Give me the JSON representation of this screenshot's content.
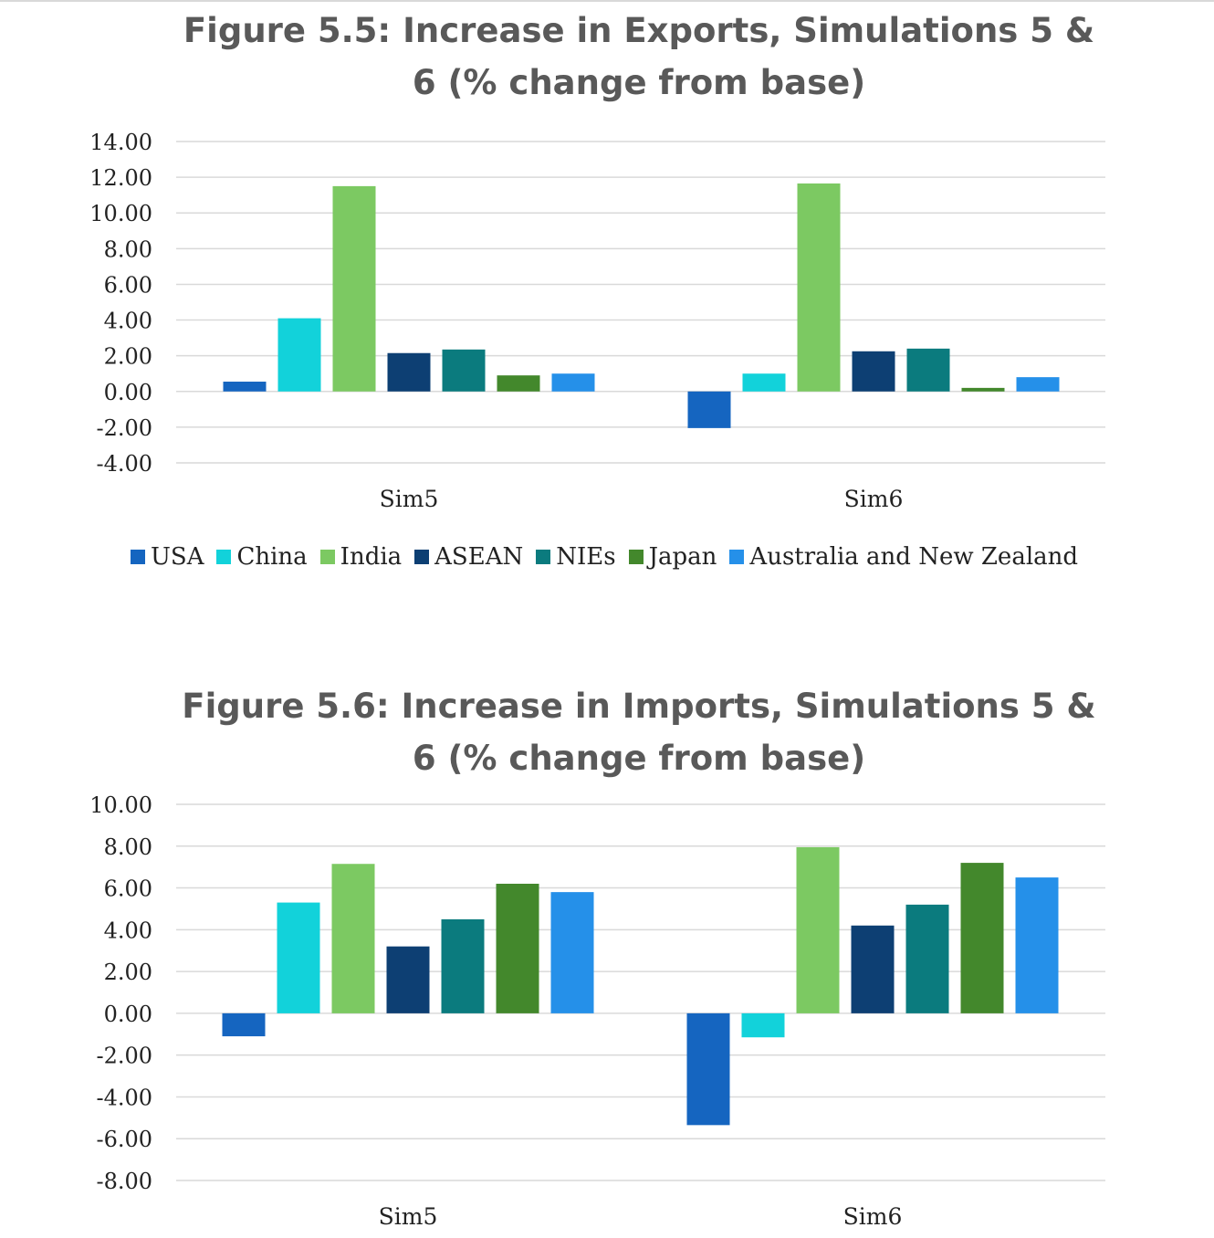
{
  "charts": [
    {
      "title_line1": "Figure 5.5: Increase in Exports, Simulations 5 &",
      "title_line2": "6 (% change from base)"
    },
    {
      "title_line1": "Figure 5.6: Increase in Imports, Simulations 5 &",
      "title_line2": "6 (% change from base)"
    }
  ],
  "legend": [
    {
      "name": "USA",
      "color": "#1565C0"
    },
    {
      "name": "China",
      "color": "#12D2DA"
    },
    {
      "name": "India",
      "color": "#7CC962"
    },
    {
      "name": "ASEAN",
      "color": "#0D3F73"
    },
    {
      "name": "NIEs",
      "color": "#0B7B7E"
    },
    {
      "name": "Japan",
      "color": "#43882C"
    },
    {
      "name": "Australia and New Zealand",
      "color": "#2590E9"
    }
  ],
  "chart_data": [
    {
      "type": "bar",
      "title": "Figure 5.5: Increase in Exports, Simulations 5 & 6 (% change from base)",
      "categories": [
        "Sim5",
        "Sim6"
      ],
      "ylim": [
        -4,
        14
      ],
      "ytick_labels": [
        "14.00",
        "12.00",
        "10.00",
        "8.00",
        "6.00",
        "4.00",
        "2.00",
        "0.00",
        "-2.00",
        "-4.00"
      ],
      "grid": true,
      "legend_position": "bottom",
      "series": [
        {
          "name": "USA",
          "values": [
            0.55,
            -2.05
          ]
        },
        {
          "name": "China",
          "values": [
            4.1,
            1.0
          ]
        },
        {
          "name": "India",
          "values": [
            11.5,
            11.65
          ]
        },
        {
          "name": "ASEAN",
          "values": [
            2.15,
            2.25
          ]
        },
        {
          "name": "NIEs",
          "values": [
            2.35,
            2.4
          ]
        },
        {
          "name": "Japan",
          "values": [
            0.9,
            0.2
          ]
        },
        {
          "name": "Australia and New Zealand",
          "values": [
            1.0,
            0.8
          ]
        }
      ]
    },
    {
      "type": "bar",
      "title": "Figure 5.6: Increase in Imports, Simulations 5 & 6 (% change from base)",
      "categories": [
        "Sim5",
        "Sim6"
      ],
      "ylim": [
        -8,
        10
      ],
      "ytick_labels": [
        "10.00",
        "8.00",
        "6.00",
        "4.00",
        "2.00",
        "0.00",
        "-2.00",
        "-4.00",
        "-6.00",
        "-8.00"
      ],
      "grid": true,
      "series": [
        {
          "name": "USA",
          "values": [
            -1.1,
            -5.35
          ]
        },
        {
          "name": "China",
          "values": [
            5.3,
            -1.15
          ]
        },
        {
          "name": "India",
          "values": [
            7.15,
            7.95
          ]
        },
        {
          "name": "ASEAN",
          "values": [
            3.2,
            4.2
          ]
        },
        {
          "name": "NIEs",
          "values": [
            4.5,
            5.2
          ]
        },
        {
          "name": "Japan",
          "values": [
            6.2,
            7.2
          ]
        },
        {
          "name": "Australia and New Zealand",
          "values": [
            5.8,
            6.5
          ]
        }
      ]
    }
  ]
}
